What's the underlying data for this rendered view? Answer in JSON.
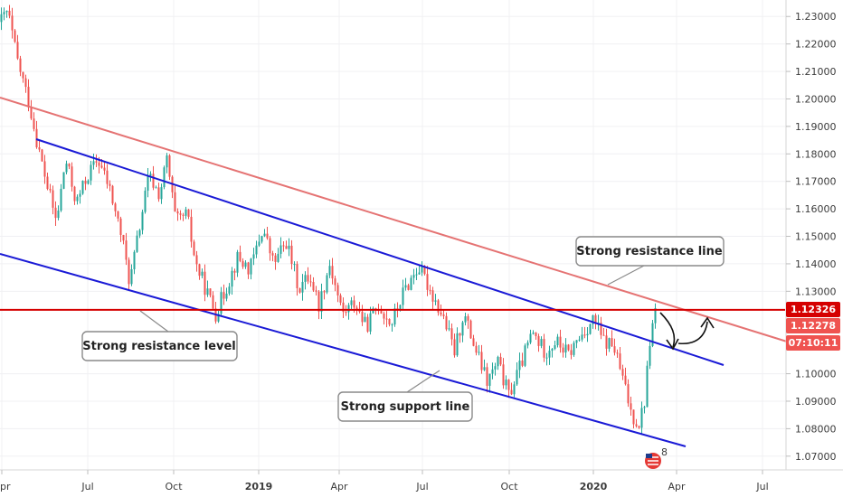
{
  "chart_data": {
    "type": "candlestick",
    "colors": {
      "up": "#26a69a",
      "down": "#ef5350",
      "resistance_line": "#e57373",
      "channel": "#1a1ad6",
      "level": "#d50000",
      "badge_dark": "#b71c1c"
    },
    "y_axis": {
      "range": [
        1.065,
        1.236
      ],
      "ticks": [
        "1.23000",
        "1.22000",
        "1.21000",
        "1.20000",
        "1.19000",
        "1.18000",
        "1.17000",
        "1.16000",
        "1.15000",
        "1.14000",
        "1.13000",
        "1.10000",
        "1.09000",
        "1.08000",
        "1.07000"
      ]
    },
    "x_axis": {
      "ticks": [
        {
          "label": "Apr",
          "bold": false
        },
        {
          "label": "Jul",
          "bold": false
        },
        {
          "label": "Oct",
          "bold": false
        },
        {
          "label": "2019",
          "bold": true
        },
        {
          "label": "Apr",
          "bold": false
        },
        {
          "label": "Jul",
          "bold": false
        },
        {
          "label": "Oct",
          "bold": false
        },
        {
          "label": "2020",
          "bold": true
        },
        {
          "label": "Apr",
          "bold": false
        },
        {
          "label": "Jul",
          "bold": false
        }
      ]
    },
    "price_badges": [
      {
        "label": "1.12326",
        "value": 1.12326
      },
      {
        "label": "1.12278",
        "value": 1.12278
      },
      {
        "label": "07:10:11"
      }
    ],
    "annotations": [
      {
        "text": "Strong resistance line"
      },
      {
        "text": "Strong resistance level"
      },
      {
        "text": "Strong support line"
      }
    ],
    "horizontal_level": 1.12326,
    "series": {
      "anchors": [
        [
          0,
          1.228
        ],
        [
          8,
          1.232
        ],
        [
          18,
          1.215
        ],
        [
          32,
          1.198
        ],
        [
          42,
          1.182
        ],
        [
          52,
          1.168
        ],
        [
          62,
          1.155
        ],
        [
          72,
          1.178
        ],
        [
          84,
          1.162
        ],
        [
          96,
          1.172
        ],
        [
          108,
          1.178
        ],
        [
          120,
          1.168
        ],
        [
          134,
          1.15
        ],
        [
          143,
          1.133
        ],
        [
          152,
          1.15
        ],
        [
          164,
          1.172
        ],
        [
          176,
          1.165
        ],
        [
          184,
          1.178
        ],
        [
          194,
          1.155
        ],
        [
          206,
          1.158
        ],
        [
          216,
          1.14
        ],
        [
          228,
          1.13
        ],
        [
          238,
          1.122
        ],
        [
          248,
          1.13
        ],
        [
          262,
          1.142
        ],
        [
          276,
          1.138
        ],
        [
          290,
          1.153
        ],
        [
          302,
          1.14
        ],
        [
          316,
          1.148
        ],
        [
          330,
          1.131
        ],
        [
          342,
          1.136
        ],
        [
          352,
          1.125
        ],
        [
          364,
          1.14
        ],
        [
          378,
          1.122
        ],
        [
          392,
          1.126
        ],
        [
          404,
          1.117
        ],
        [
          418,
          1.125
        ],
        [
          432,
          1.118
        ],
        [
          446,
          1.13
        ],
        [
          462,
          1.139
        ],
        [
          476,
          1.13
        ],
        [
          490,
          1.12
        ],
        [
          502,
          1.108
        ],
        [
          512,
          1.122
        ],
        [
          524,
          1.11
        ],
        [
          538,
          1.097
        ],
        [
          550,
          1.104
        ],
        [
          562,
          1.092
        ],
        [
          576,
          1.104
        ],
        [
          588,
          1.115
        ],
        [
          602,
          1.108
        ],
        [
          614,
          1.112
        ],
        [
          628,
          1.107
        ],
        [
          642,
          1.114
        ],
        [
          656,
          1.12
        ],
        [
          666,
          1.112
        ],
        [
          678,
          1.11
        ],
        [
          688,
          1.098
        ],
        [
          698,
          1.085
        ],
        [
          706,
          1.082
        ],
        [
          712,
          1.09
        ],
        [
          718,
          1.112
        ],
        [
          724,
          1.123
        ]
      ],
      "step_px": 3,
      "seed": 42
    }
  }
}
